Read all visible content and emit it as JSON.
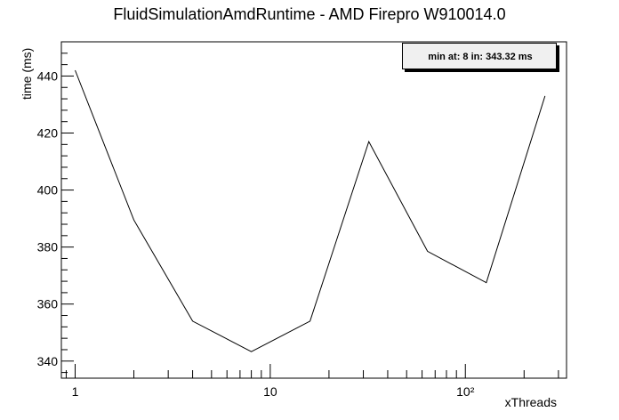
{
  "chart_data": {
    "type": "line",
    "title": "FluidSimulationAmdRuntime - AMD Firepro W910014.0",
    "xlabel": "xThreads",
    "ylabel": "time (ms)",
    "x_scale": "log",
    "xlim": [
      0.85,
      330
    ],
    "ylim": [
      334,
      452
    ],
    "x_major_tick_labels": [
      "1",
      "10",
      "10²"
    ],
    "y_tick_labels": [
      "340",
      "360",
      "380",
      "400",
      "420",
      "440"
    ],
    "series": [
      {
        "x": [
          1,
          2,
          4,
          8,
          16,
          32,
          64,
          128,
          256
        ],
        "y": [
          442,
          389.5,
          354,
          343.3,
          354,
          417,
          378.5,
          367.5,
          433
        ]
      }
    ],
    "annotation": "min at: 8 in: 343.32 ms",
    "grid": false,
    "legend": "none"
  }
}
